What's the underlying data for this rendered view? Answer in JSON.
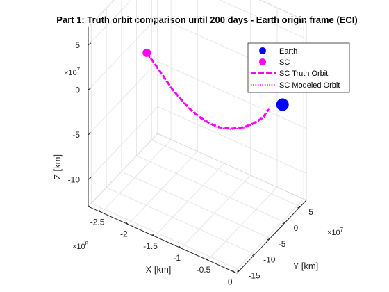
{
  "chart_data": {
    "type": "line",
    "dimension": "3d",
    "title": "Part 1: Truth orbit comparison until 200 days - Earth origin frame (ECI)",
    "xlabel": "X [km]",
    "ylabel": "Y [km]",
    "zlabel": "Z [km]",
    "grid": true,
    "legend_placement": "top-right",
    "x_axis": {
      "scale_exponent": "×10",
      "scale_power": "8",
      "ticks": [
        -2.5,
        -2,
        -1.5,
        -1,
        -0.5,
        0
      ],
      "tick_labels": [
        "-2.5",
        "-2",
        "-1.5",
        "-1",
        "-0.5",
        "0"
      ],
      "range": [
        -2.75,
        0.05
      ]
    },
    "y_axis": {
      "scale_exponent": "×10",
      "scale_power": "7",
      "ticks": [
        -15,
        -10,
        -5,
        0,
        5
      ],
      "tick_labels": [
        "-15",
        "-10",
        "-5",
        "0",
        "5"
      ],
      "range": [
        -16,
        7
      ]
    },
    "z_axis": {
      "scale_exponent": "×10",
      "scale_power": "7",
      "ticks": [
        -10,
        -5,
        0,
        5
      ],
      "tick_labels": [
        "-10",
        "-5",
        "0",
        "5"
      ],
      "range": [
        -13,
        7
      ]
    },
    "legend": [
      {
        "label": "Earth",
        "marker": "circle",
        "color": "#0000ff"
      },
      {
        "label": "SC",
        "marker": "circle",
        "color": "#ff00ff"
      },
      {
        "label": "SC Truth Orbit",
        "line": "dashed",
        "color": "#ff00ff"
      },
      {
        "label": "SC Modeled Orbit",
        "line": "dotted",
        "color": "#ff00ff"
      }
    ],
    "series": [
      {
        "name": "Earth",
        "kind": "marker",
        "color": "#0000ff",
        "points": [
          {
            "x": 0,
            "y": 0,
            "z": 0
          }
        ]
      },
      {
        "name": "SC",
        "kind": "marker",
        "color": "#ff00ff",
        "points": [
          {
            "x": -2.5,
            "y": -1,
            "z": -0.5
          }
        ]
      },
      {
        "name": "SC Truth Orbit",
        "kind": "line",
        "style": "dashed",
        "color": "#ff00ff",
        "points": [
          {
            "x": -2.5,
            "y": -1,
            "z": -0.5
          },
          {
            "x": -2.3,
            "y": -1.5,
            "z": -1.2
          },
          {
            "x": -2.1,
            "y": -2.2,
            "z": -1.8
          },
          {
            "x": -1.9,
            "y": -3,
            "z": -2.3
          },
          {
            "x": -1.7,
            "y": -3.6,
            "z": -2.7
          },
          {
            "x": -1.5,
            "y": -4.2,
            "z": -3
          },
          {
            "x": -1.3,
            "y": -4.6,
            "z": -3.2
          },
          {
            "x": -1.1,
            "y": -4.8,
            "z": -3.3
          },
          {
            "x": -0.9,
            "y": -4.9,
            "z": -3.2
          },
          {
            "x": -0.7,
            "y": -4.6,
            "z": -2.9
          },
          {
            "x": -0.5,
            "y": -4.1,
            "z": -2.4
          },
          {
            "x": -0.35,
            "y": -3.4,
            "z": -1.8
          },
          {
            "x": -0.22,
            "y": -2.6,
            "z": -1.1
          },
          {
            "x": -0.14,
            "y": -2.3,
            "z": -0.1
          }
        ]
      },
      {
        "name": "SC Modeled Orbit",
        "kind": "line",
        "style": "dotted",
        "color": "#ff00ff",
        "points": [
          {
            "x": -2.5,
            "y": -1,
            "z": -0.5
          },
          {
            "x": -2.3,
            "y": -1.55,
            "z": -1.25
          },
          {
            "x": -2.1,
            "y": -2.25,
            "z": -1.85
          },
          {
            "x": -1.9,
            "y": -3.05,
            "z": -2.35
          },
          {
            "x": -1.7,
            "y": -3.65,
            "z": -2.75
          },
          {
            "x": -1.5,
            "y": -4.25,
            "z": -3.05
          },
          {
            "x": -1.3,
            "y": -4.65,
            "z": -3.25
          },
          {
            "x": -1.1,
            "y": -4.85,
            "z": -3.35
          },
          {
            "x": -0.9,
            "y": -4.95,
            "z": -3.25
          },
          {
            "x": -0.7,
            "y": -4.65,
            "z": -2.95
          },
          {
            "x": -0.5,
            "y": -4.15,
            "z": -2.45
          },
          {
            "x": -0.34,
            "y": -3.45,
            "z": -1.8
          },
          {
            "x": -0.2,
            "y": -2.55,
            "z": -1.05
          },
          {
            "x": -0.12,
            "y": -2.2,
            "z": 0.1
          }
        ]
      }
    ]
  }
}
